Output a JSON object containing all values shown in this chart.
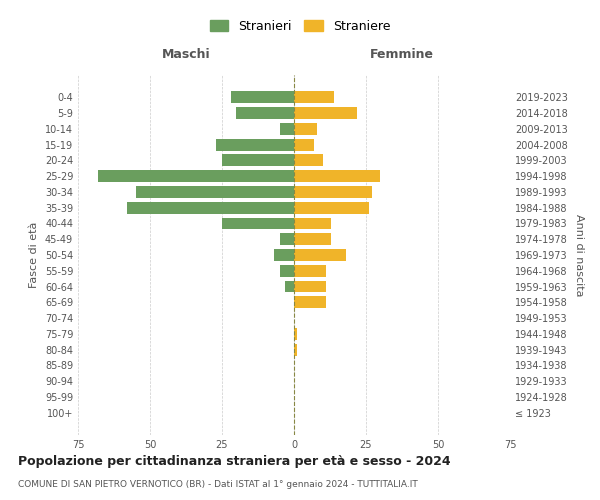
{
  "age_groups": [
    "100+",
    "95-99",
    "90-94",
    "85-89",
    "80-84",
    "75-79",
    "70-74",
    "65-69",
    "60-64",
    "55-59",
    "50-54",
    "45-49",
    "40-44",
    "35-39",
    "30-34",
    "25-29",
    "20-24",
    "15-19",
    "10-14",
    "5-9",
    "0-4"
  ],
  "birth_years": [
    "≤ 1923",
    "1924-1928",
    "1929-1933",
    "1934-1938",
    "1939-1943",
    "1944-1948",
    "1949-1953",
    "1954-1958",
    "1959-1963",
    "1964-1968",
    "1969-1973",
    "1974-1978",
    "1979-1983",
    "1984-1988",
    "1989-1993",
    "1994-1998",
    "1999-2003",
    "2004-2008",
    "2009-2013",
    "2014-2018",
    "2019-2023"
  ],
  "males": [
    0,
    0,
    0,
    0,
    0,
    0,
    0,
    0,
    3,
    5,
    7,
    5,
    25,
    58,
    55,
    68,
    25,
    27,
    5,
    20,
    22
  ],
  "females": [
    0,
    0,
    0,
    0,
    1,
    1,
    0,
    11,
    11,
    11,
    18,
    13,
    13,
    26,
    27,
    30,
    10,
    7,
    8,
    22,
    14
  ],
  "male_color": "#6a9e5e",
  "female_color": "#f0b429",
  "background_color": "#ffffff",
  "grid_color": "#cccccc",
  "title": "Popolazione per cittadinanza straniera per età e sesso - 2024",
  "subtitle": "COMUNE DI SAN PIETRO VERNOTICO (BR) - Dati ISTAT al 1° gennaio 2024 - TUTTITALIA.IT",
  "ylabel_left": "Fasce di età",
  "ylabel_right": "Anni di nascita",
  "xlabel_left": "Maschi",
  "xlabel_right": "Femmine",
  "legend_male": "Stranieri",
  "legend_female": "Straniere",
  "xlim": 75,
  "bar_height": 0.75
}
